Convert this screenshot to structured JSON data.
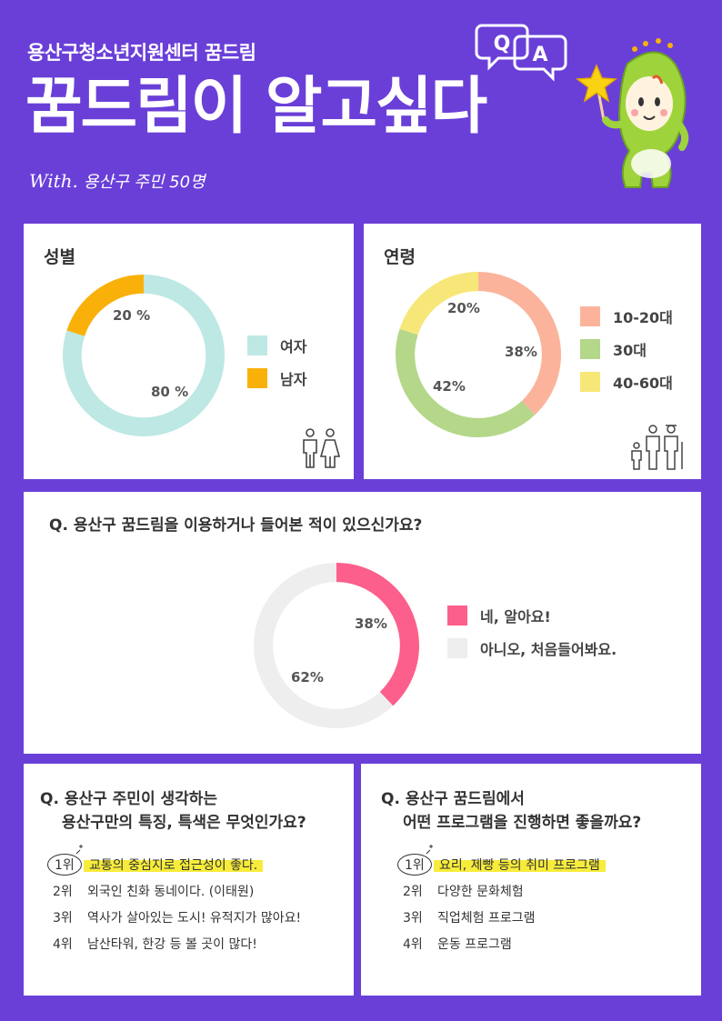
{
  "header": {
    "org": "용산구청소년지원센터 꿈드림",
    "title": "꿈드림이 알고싶다",
    "with_prefix": "With.",
    "with_text": "용산구 주민 50명",
    "qa_q": "Q",
    "qa_a": "A"
  },
  "colors": {
    "background": "#6a3fd8",
    "female": "#bde8e3",
    "male": "#f9b10a",
    "age_10_20": "#fbb49b",
    "age_30": "#b4d78a",
    "age_40_60": "#f7e779",
    "aware_yes": "#fc5f8b",
    "aware_no": "#eeeeee",
    "highlight": "#f7ec3b"
  },
  "gender": {
    "title": "성별",
    "labels": {
      "female_pct": "80 %",
      "male_pct": "20 %"
    },
    "legend": [
      "여자",
      "남자"
    ],
    "icon": "man-woman-icon"
  },
  "age": {
    "title": "연령",
    "labels": {
      "a1020_pct": "38%",
      "a30_pct": "42%",
      "a4060_pct": "20%"
    },
    "legend": [
      "10-20대",
      "30대",
      "40-60대"
    ],
    "icon": "family-icon"
  },
  "awareness": {
    "question": "Q. 용산구 꿈드림을 이용하거나 들어본 적이 있으신가요?",
    "labels": {
      "yes_pct": "38%",
      "no_pct": "62%"
    },
    "legend": [
      "네, 알아요!",
      "아니오, 처음들어봐요."
    ]
  },
  "traits": {
    "question_l1": "Q. 용산구 주민이 생각하는",
    "question_l2": "용산구만의 특징, 특색은 무엇인가요?",
    "ranks": [
      {
        "no": "1위",
        "text": "교통의 중심지로 접근성이 좋다."
      },
      {
        "no": "2위",
        "text": "외국인 친화 동네이다. (이태원)"
      },
      {
        "no": "3위",
        "text": "역사가 살아있는 도시! 유적지가 많아요!"
      },
      {
        "no": "4위",
        "text": "남산타워, 한강 등 볼 곳이 많다!"
      }
    ]
  },
  "programs": {
    "question_l1": "Q. 용산구 꿈드림에서",
    "question_l2": "어떤 프로그램을 진행하면 좋을까요?",
    "ranks": [
      {
        "no": "1위",
        "text": "요리, 제빵 등의 취미 프로그램"
      },
      {
        "no": "2위",
        "text": "다양한 문화체험"
      },
      {
        "no": "3위",
        "text": "직업체험 프로그램"
      },
      {
        "no": "4위",
        "text": "운동 프로그램"
      }
    ]
  },
  "chart_data": [
    {
      "type": "pie",
      "title": "성별",
      "categories": [
        "여자",
        "남자"
      ],
      "values": [
        80,
        20
      ],
      "colors": [
        "#bde8e3",
        "#f9b10a"
      ],
      "legend": "right"
    },
    {
      "type": "pie",
      "title": "연령",
      "categories": [
        "10-20대",
        "30대",
        "40-60대"
      ],
      "values": [
        38,
        42,
        20
      ],
      "colors": [
        "#fbb49b",
        "#b4d78a",
        "#f7e779"
      ],
      "legend": "right"
    },
    {
      "type": "pie",
      "title": "Q. 용산구 꿈드림을 이용하거나 들어본 적이 있으신가요?",
      "categories": [
        "네, 알아요!",
        "아니오, 처음들어봐요."
      ],
      "values": [
        38,
        62
      ],
      "colors": [
        "#fc5f8b",
        "#eeeeee"
      ],
      "legend": "right"
    }
  ]
}
